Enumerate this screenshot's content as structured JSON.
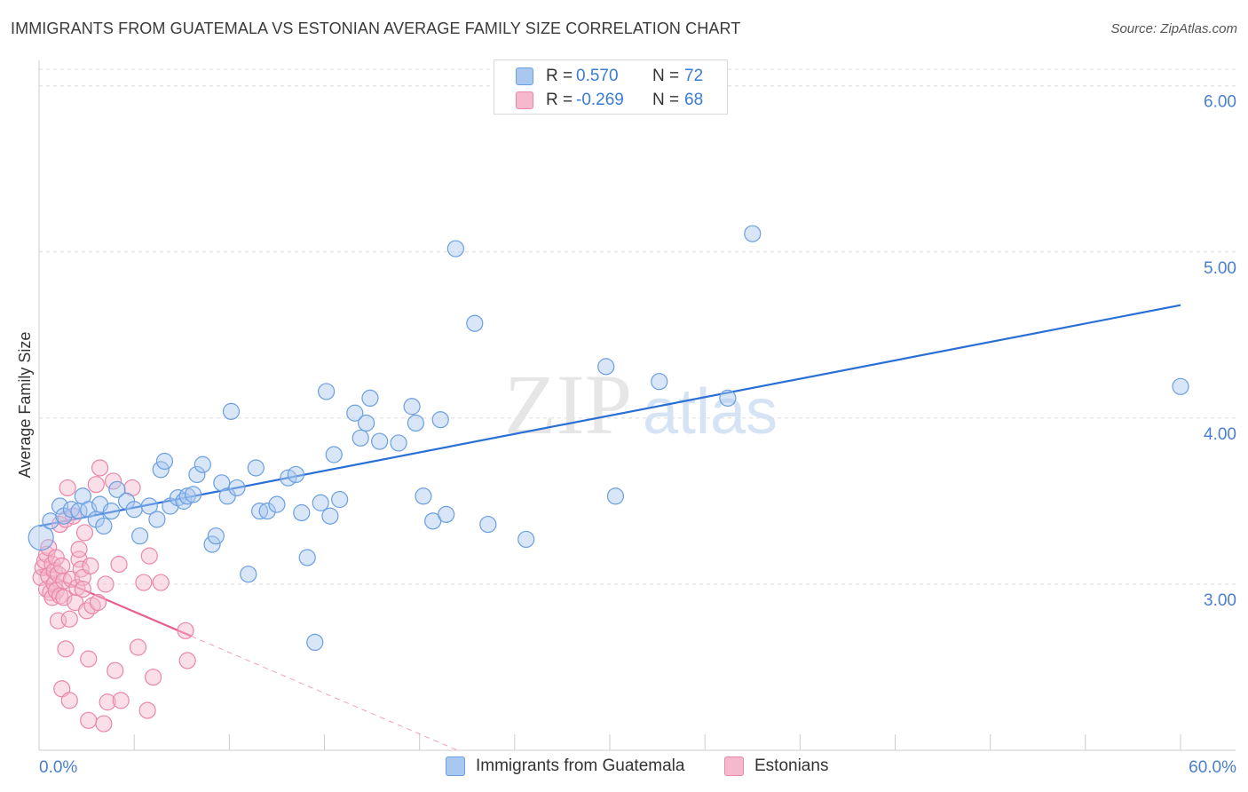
{
  "title": "IMMIGRANTS FROM GUATEMALA VS ESTONIAN AVERAGE FAMILY SIZE CORRELATION CHART",
  "source": "Source: ZipAtlas.com",
  "watermark": {
    "zip": "ZIP",
    "atlas": "atlas"
  },
  "legend": {
    "rows": [
      {
        "r_label": "R =",
        "r_value": "0.570",
        "n_label": "N =",
        "n_value": "72"
      },
      {
        "r_label": "R =",
        "r_value": "-0.269",
        "n_label": "N =",
        "n_value": "68"
      }
    ]
  },
  "bottom_legend": [
    "Immigrants from Guatemala",
    "Estonians"
  ],
  "colors": {
    "blue_fill": "#a8c8f0",
    "blue_stroke": "#6a9fe0",
    "blue_line": "#2a6fd6",
    "pink_fill": "#f5b8cc",
    "pink_stroke": "#ea86a8",
    "pink_line": "#e8608e",
    "axis_label": "#4a7fd0",
    "grid": "#dcdcdc"
  },
  "chart_data": {
    "type": "scatter",
    "title": "IMMIGRANTS FROM GUATEMALA VS ESTONIAN AVERAGE FAMILY SIZE CORRELATION CHART",
    "xlabel": "",
    "ylabel": "Average Family Size",
    "xlim": [
      0,
      60
    ],
    "ylim": [
      2.0,
      6.1
    ],
    "x_tick_labels": [
      "0.0%",
      "60.0%"
    ],
    "y_ticks": [
      3.0,
      4.0,
      5.0,
      6.0
    ],
    "y_tick_labels": [
      "3.00",
      "4.00",
      "5.00",
      "6.00"
    ],
    "grid": true,
    "series": [
      {
        "name": "Immigrants from Guatemala",
        "color": "blue",
        "trend": {
          "x0": 0,
          "y0": 3.35,
          "x1": 60,
          "y1": 4.68
        },
        "points": [
          [
            0.1,
            3.28
          ],
          [
            0.6,
            3.38
          ],
          [
            1.1,
            3.47
          ],
          [
            1.3,
            3.41
          ],
          [
            1.7,
            3.45
          ],
          [
            2.1,
            3.44
          ],
          [
            2.3,
            3.53
          ],
          [
            2.6,
            3.45
          ],
          [
            3.0,
            3.39
          ],
          [
            3.2,
            3.48
          ],
          [
            3.4,
            3.35
          ],
          [
            3.8,
            3.44
          ],
          [
            4.1,
            3.57
          ],
          [
            4.6,
            3.5
          ],
          [
            5.0,
            3.45
          ],
          [
            5.3,
            3.29
          ],
          [
            5.8,
            3.47
          ],
          [
            6.2,
            3.39
          ],
          [
            6.4,
            3.69
          ],
          [
            6.6,
            3.74
          ],
          [
            6.9,
            3.47
          ],
          [
            7.3,
            3.52
          ],
          [
            7.6,
            3.5
          ],
          [
            7.8,
            3.53
          ],
          [
            8.1,
            3.54
          ],
          [
            8.3,
            3.66
          ],
          [
            8.6,
            3.72
          ],
          [
            9.1,
            3.24
          ],
          [
            9.3,
            3.29
          ],
          [
            9.6,
            3.61
          ],
          [
            9.9,
            3.53
          ],
          [
            10.1,
            4.04
          ],
          [
            10.4,
            3.58
          ],
          [
            11.0,
            3.06
          ],
          [
            11.4,
            3.7
          ],
          [
            11.6,
            3.44
          ],
          [
            12.0,
            3.44
          ],
          [
            12.5,
            3.48
          ],
          [
            13.1,
            3.64
          ],
          [
            13.5,
            3.66
          ],
          [
            13.8,
            3.43
          ],
          [
            14.1,
            3.16
          ],
          [
            14.5,
            2.65
          ],
          [
            14.8,
            3.49
          ],
          [
            15.1,
            4.16
          ],
          [
            15.3,
            3.41
          ],
          [
            15.5,
            3.78
          ],
          [
            15.8,
            3.51
          ],
          [
            16.6,
            4.03
          ],
          [
            16.9,
            3.88
          ],
          [
            17.2,
            3.97
          ],
          [
            17.4,
            4.12
          ],
          [
            17.9,
            3.86
          ],
          [
            18.9,
            3.85
          ],
          [
            19.6,
            4.07
          ],
          [
            19.8,
            3.97
          ],
          [
            20.2,
            3.53
          ],
          [
            20.7,
            3.38
          ],
          [
            21.1,
            3.99
          ],
          [
            21.4,
            3.42
          ],
          [
            21.9,
            5.02
          ],
          [
            22.9,
            4.57
          ],
          [
            23.6,
            3.36
          ],
          [
            25.6,
            3.27
          ],
          [
            29.8,
            4.31
          ],
          [
            30.3,
            3.53
          ],
          [
            32.6,
            4.22
          ],
          [
            36.2,
            4.12
          ],
          [
            37.5,
            5.11
          ],
          [
            60.0,
            4.19
          ]
        ]
      },
      {
        "name": "Estonians",
        "color": "pink",
        "trend": {
          "x0": 0,
          "y0": 3.08,
          "x1": 22,
          "y1": 2.0,
          "solid_until_x": 8.0
        },
        "points": [
          [
            0.1,
            3.04
          ],
          [
            0.2,
            3.1
          ],
          [
            0.3,
            3.14
          ],
          [
            0.4,
            3.18
          ],
          [
            0.4,
            2.97
          ],
          [
            0.5,
            3.05
          ],
          [
            0.5,
            3.22
          ],
          [
            0.6,
            2.95
          ],
          [
            0.7,
            3.12
          ],
          [
            0.7,
            2.92
          ],
          [
            0.8,
            3.0
          ],
          [
            0.8,
            3.08
          ],
          [
            0.9,
            2.96
          ],
          [
            0.9,
            3.16
          ],
          [
            1.0,
            2.78
          ],
          [
            1.0,
            3.06
          ],
          [
            1.1,
            3.36
          ],
          [
            1.1,
            2.93
          ],
          [
            1.2,
            2.37
          ],
          [
            1.2,
            3.11
          ],
          [
            1.3,
            3.02
          ],
          [
            1.3,
            2.92
          ],
          [
            1.4,
            3.39
          ],
          [
            1.4,
            2.61
          ],
          [
            1.5,
            3.58
          ],
          [
            1.6,
            2.79
          ],
          [
            1.6,
            2.3
          ],
          [
            1.7,
            3.03
          ],
          [
            1.8,
            3.41
          ],
          [
            1.9,
            2.89
          ],
          [
            2.0,
            2.98
          ],
          [
            2.1,
            3.15
          ],
          [
            2.1,
            3.21
          ],
          [
            2.2,
            3.09
          ],
          [
            2.3,
            3.04
          ],
          [
            2.3,
            2.97
          ],
          [
            2.4,
            3.31
          ],
          [
            2.5,
            2.84
          ],
          [
            2.6,
            2.55
          ],
          [
            2.6,
            2.18
          ],
          [
            2.7,
            3.11
          ],
          [
            2.8,
            2.87
          ],
          [
            3.0,
            3.6
          ],
          [
            3.1,
            2.89
          ],
          [
            3.2,
            3.7
          ],
          [
            3.4,
            2.16
          ],
          [
            3.5,
            3.0
          ],
          [
            3.6,
            2.29
          ],
          [
            3.9,
            3.62
          ],
          [
            4.0,
            2.48
          ],
          [
            4.2,
            3.12
          ],
          [
            4.3,
            2.3
          ],
          [
            4.9,
            3.58
          ],
          [
            5.2,
            2.62
          ],
          [
            5.5,
            3.01
          ],
          [
            5.7,
            2.24
          ],
          [
            5.8,
            3.17
          ],
          [
            6.0,
            2.44
          ],
          [
            6.4,
            3.01
          ],
          [
            7.7,
            2.72
          ],
          [
            7.8,
            2.54
          ]
        ]
      }
    ]
  }
}
